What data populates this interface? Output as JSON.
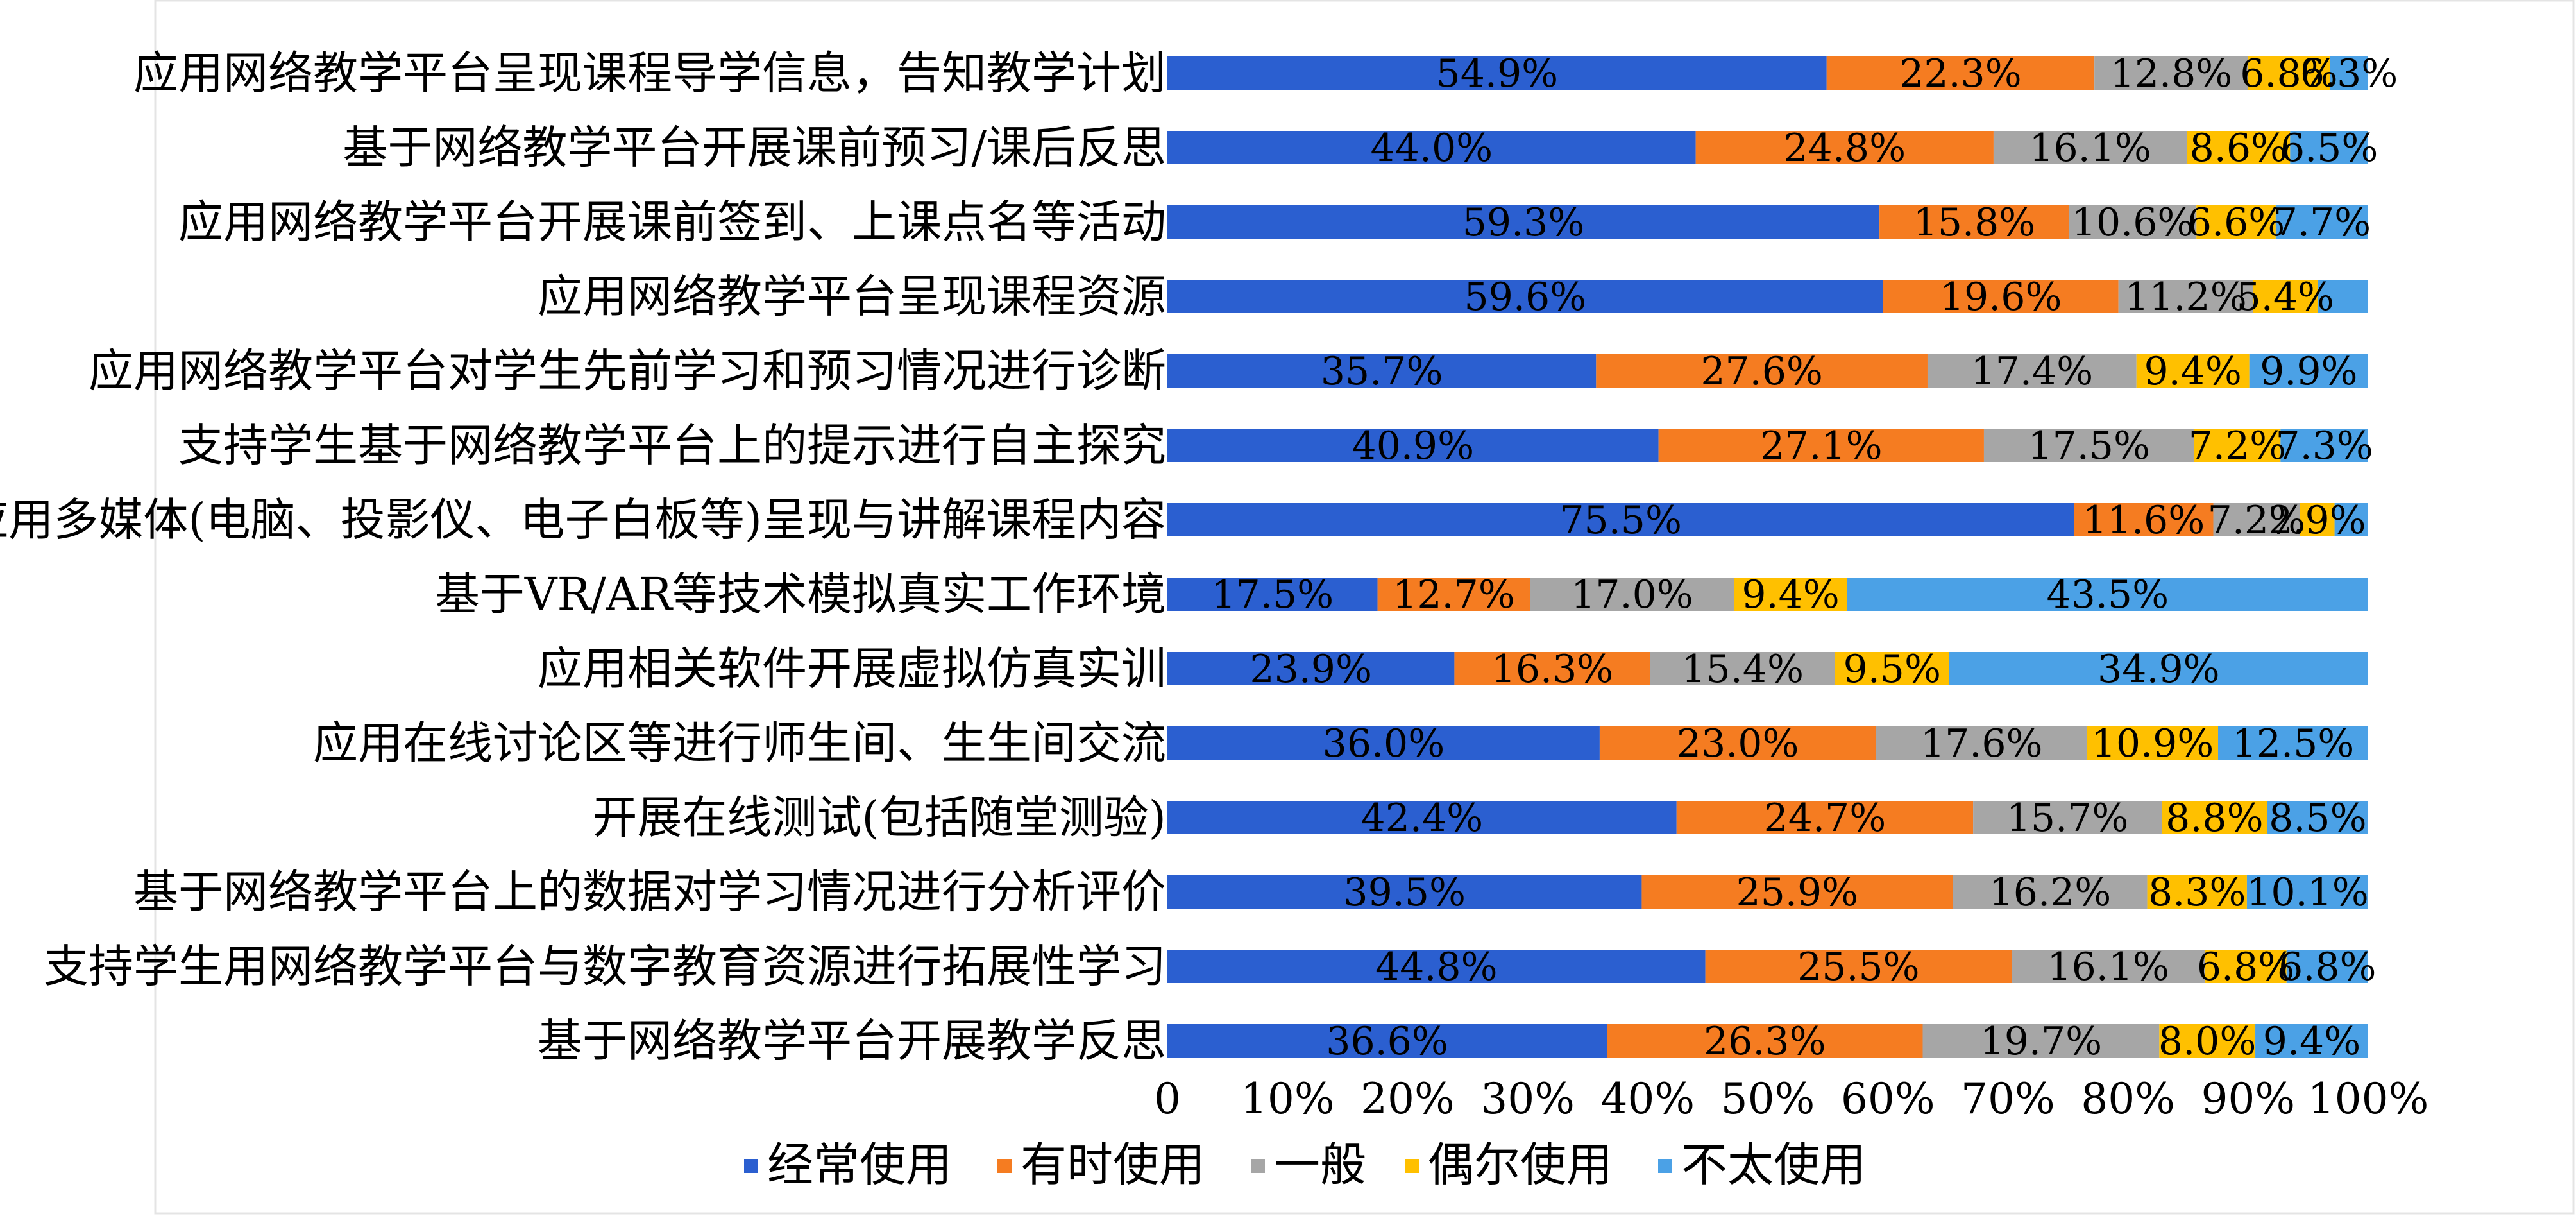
{
  "chart_data": {
    "type": "bar",
    "orientation": "horizontal",
    "stacked": "percent",
    "title": "",
    "xlabel": "",
    "ylabel": "",
    "xlim": [
      0,
      100
    ],
    "grid": false,
    "legend_position": "bottom",
    "x_ticks": [
      "0",
      "10%",
      "20%",
      "30%",
      "40%",
      "50%",
      "60%",
      "70%",
      "80%",
      "90%",
      "100%"
    ],
    "categories": [
      "应用网络教学平台呈现课程导学信息，告知教学计划",
      "基于网络教学平台开展课前预习/课后反思",
      "应用网络教学平台开展课前签到、上课点名等活动",
      "应用网络教学平台呈现课程资源",
      "应用网络教学平台对学生先前学习和预习情况进行诊断",
      "支持学生基于网络教学平台上的提示进行自主探究",
      "应用多媒体(电脑、投影仪、电子白板等)呈现与讲解课程内容",
      "基于VR/AR等技术模拟真实工作环境",
      "应用相关软件开展虚拟仿真实训",
      "应用在线讨论区等进行师生间、生生间交流",
      "开展在线测试(包括随堂测验)",
      "基于网络教学平台上的数据对学习情况进行分析评价",
      "支持学生用网络教学平台与数字教育资源进行拓展性学习",
      "基于网络教学平台开展教学反思"
    ],
    "series": [
      {
        "name": "经常使用",
        "color": "#2b5fd0",
        "values": [
          54.9,
          44.0,
          59.3,
          59.6,
          35.7,
          40.9,
          75.5,
          17.5,
          23.9,
          36.0,
          42.4,
          39.5,
          44.8,
          36.6
        ],
        "labels": [
          "54.9%",
          "44.0%",
          "59.3%",
          "59.6%",
          "35.7%",
          "40.9%",
          "75.5%",
          "17.5%",
          "23.9%",
          "36.0%",
          "42.4%",
          "39.5%",
          "44.8%",
          "36.6%"
        ]
      },
      {
        "name": "有时使用",
        "color": "#f57c21",
        "values": [
          22.3,
          24.8,
          15.8,
          19.6,
          27.6,
          27.1,
          11.6,
          12.7,
          16.3,
          23.0,
          24.7,
          25.9,
          25.5,
          26.3
        ],
        "labels": [
          "22.3%",
          "24.8%",
          "15.8%",
          "19.6%",
          "27.6%",
          "27.1%",
          "11.6%",
          "12.7%",
          "16.3%",
          "23.0%",
          "24.7%",
          "25.9%",
          "25.5%",
          "26.3%"
        ]
      },
      {
        "name": "一般",
        "color": "#a6a6a6",
        "values": [
          12.8,
          16.1,
          10.6,
          11.2,
          17.4,
          17.5,
          7.2,
          17.0,
          15.4,
          17.6,
          15.7,
          16.2,
          16.1,
          19.7
        ],
        "labels": [
          "12.8%",
          "16.1%",
          "10.6%",
          "11.2%",
          "17.4%",
          "17.5%",
          "7.2%",
          "17.0%",
          "15.4%",
          "17.6%",
          "15.7%",
          "16.2%",
          "16.1%",
          "19.7%"
        ]
      },
      {
        "name": "偶尔使用",
        "color": "#ffc000",
        "values": [
          6.8,
          8.6,
          6.6,
          5.4,
          9.4,
          7.2,
          2.9,
          9.4,
          9.5,
          10.9,
          8.8,
          8.3,
          6.8,
          8.0
        ],
        "labels": [
          "6.8%",
          "8.6%",
          "6.6%",
          "5.4%",
          "9.4%",
          "7.2%",
          "2.9%",
          "9.4%",
          "9.5%",
          "10.9%",
          "8.8%",
          "8.3%",
          "6.8%",
          "8.0%"
        ]
      },
      {
        "name": "不太使用",
        "color": "#4ba1e6",
        "values": [
          6.3,
          6.5,
          7.7,
          4.2,
          9.9,
          7.3,
          2.8,
          43.5,
          34.9,
          12.5,
          8.5,
          10.1,
          6.8,
          9.4
        ],
        "labels": [
          "6.3%",
          "6.5%",
          "7.7%",
          "",
          "9.9%",
          "7.3%",
          "",
          "43.5%",
          "34.9%",
          "12.5%",
          "8.5%",
          "10.1%",
          "6.8%",
          "9.4%"
        ]
      }
    ]
  }
}
